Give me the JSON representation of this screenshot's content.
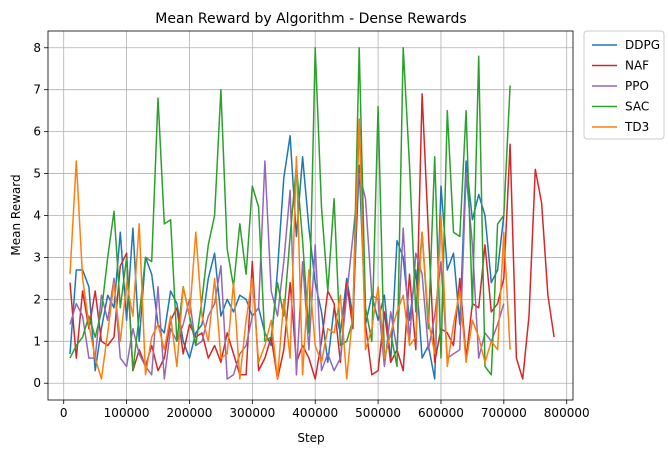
{
  "chart_data": {
    "type": "line",
    "title": "Mean Reward by Algorithm - Dense Rewards",
    "xlabel": "Step",
    "ylabel": "Mean Reward",
    "xlim": [
      -25000,
      810000
    ],
    "ylim": [
      -0.4,
      8.4
    ],
    "xticks": [
      0,
      100000,
      200000,
      300000,
      400000,
      500000,
      600000,
      700000,
      800000
    ],
    "yticks": [
      0,
      1,
      2,
      3,
      4,
      5,
      6,
      7,
      8
    ],
    "grid": true,
    "legend_position": "outside-right-top",
    "series": [
      {
        "name": "DDPG",
        "color": "#1f77b4",
        "x": [
          10000,
          20000,
          30000,
          40000,
          50000,
          60000,
          70000,
          80000,
          90000,
          100000,
          110000,
          120000,
          130000,
          140000,
          150000,
          160000,
          170000,
          180000,
          190000,
          200000,
          210000,
          220000,
          230000,
          240000,
          250000,
          260000,
          270000,
          280000,
          290000,
          300000,
          310000,
          320000,
          330000,
          340000,
          350000,
          360000,
          370000,
          380000,
          390000,
          400000,
          410000,
          420000,
          430000,
          440000,
          450000,
          460000,
          470000,
          480000,
          490000,
          500000,
          510000,
          520000,
          530000,
          540000,
          550000,
          560000,
          570000,
          580000,
          590000,
          600000,
          610000,
          620000,
          630000,
          640000,
          650000,
          660000,
          670000,
          680000,
          690000,
          700000
        ],
        "y": [
          0.7,
          2.7,
          2.7,
          2.3,
          0.3,
          1.3,
          2.1,
          1.8,
          3.6,
          1.5,
          3.7,
          1.0,
          3.0,
          2.6,
          1.4,
          1.2,
          2.2,
          1.9,
          1.0,
          0.6,
          1.2,
          1.4,
          2.5,
          3.1,
          1.6,
          2.0,
          1.7,
          2.1,
          2.0,
          1.6,
          1.8,
          1.2,
          0.9,
          2.7,
          4.9,
          5.9,
          3.5,
          5.4,
          3.7,
          2.4,
          1.7,
          0.5,
          1.8,
          1.2,
          2.5,
          1.6,
          5.2,
          1.4,
          2.1,
          1.5,
          2.1,
          0.5,
          3.4,
          3.0,
          1.5,
          2.7,
          0.6,
          0.9,
          0.1,
          4.7,
          2.7,
          3.1,
          1.4,
          5.3,
          3.9,
          4.5,
          4.0,
          2.4,
          2.7,
          4.0
        ]
      },
      {
        "name": "NAF",
        "color": "#d62728",
        "x": [
          10000,
          20000,
          30000,
          40000,
          50000,
          60000,
          70000,
          80000,
          90000,
          100000,
          110000,
          120000,
          130000,
          140000,
          150000,
          160000,
          170000,
          180000,
          190000,
          200000,
          210000,
          220000,
          230000,
          240000,
          250000,
          260000,
          270000,
          280000,
          290000,
          300000,
          310000,
          320000,
          330000,
          340000,
          350000,
          360000,
          370000,
          380000,
          390000,
          400000,
          410000,
          420000,
          430000,
          440000,
          450000,
          460000,
          470000,
          480000,
          490000,
          500000,
          510000,
          520000,
          530000,
          540000,
          550000,
          560000,
          570000,
          580000,
          590000,
          600000,
          610000,
          620000,
          630000,
          640000,
          650000,
          660000,
          670000,
          680000,
          690000,
          700000,
          710000,
          720000,
          730000,
          740000,
          750000,
          760000,
          770000,
          780000
        ],
        "y": [
          2.4,
          0.6,
          2.2,
          1.3,
          2.2,
          1.0,
          0.9,
          1.1,
          2.8,
          3.1,
          0.3,
          0.8,
          0.4,
          0.9,
          0.3,
          0.6,
          1.5,
          1.8,
          0.7,
          1.4,
          1.1,
          1.2,
          0.6,
          0.9,
          0.5,
          1.2,
          0.7,
          0.2,
          0.2,
          2.9,
          0.3,
          0.6,
          1.1,
          0.1,
          0.8,
          2.4,
          0.5,
          0.9,
          0.6,
          0.1,
          1.0,
          2.2,
          1.9,
          0.5,
          2.4,
          1.3,
          6.3,
          1.4,
          0.2,
          0.3,
          1.7,
          0.5,
          0.8,
          0.3,
          2.6,
          0.8,
          6.9,
          3.6,
          0.5,
          1.3,
          1.2,
          0.9,
          2.5,
          0.6,
          1.9,
          1.8,
          3.3,
          1.7,
          1.9,
          2.5,
          5.7,
          0.6,
          0.1,
          1.6,
          5.1,
          4.3,
          2.1,
          1.1
        ]
      },
      {
        "name": "PPO",
        "color": "#9467bd",
        "x": [
          10000,
          20000,
          30000,
          40000,
          50000,
          60000,
          70000,
          80000,
          90000,
          100000,
          110000,
          120000,
          130000,
          140000,
          150000,
          160000,
          170000,
          180000,
          190000,
          200000,
          210000,
          220000,
          230000,
          240000,
          250000,
          260000,
          270000,
          280000,
          290000,
          300000,
          310000,
          320000,
          330000,
          340000,
          350000,
          360000,
          370000,
          380000,
          390000,
          400000,
          410000,
          420000,
          430000,
          440000,
          450000,
          460000,
          470000,
          480000,
          490000,
          500000,
          510000,
          520000,
          530000,
          540000,
          550000,
          560000,
          570000,
          580000,
          590000,
          600000,
          610000,
          620000,
          630000,
          640000,
          650000,
          660000,
          670000,
          680000,
          690000,
          700000
        ],
        "y": [
          1.4,
          1.9,
          1.6,
          0.6,
          0.6,
          2.1,
          1.5,
          2.5,
          0.6,
          0.4,
          1.3,
          0.7,
          0.4,
          0.2,
          2.3,
          0.1,
          1.3,
          1.0,
          1.4,
          2.0,
          0.9,
          1.0,
          1.6,
          1.9,
          2.8,
          0.1,
          0.2,
          0.7,
          0.9,
          1.6,
          1.8,
          5.3,
          2.2,
          1.6,
          2.9,
          4.6,
          0.2,
          2.9,
          0.8,
          3.3,
          0.3,
          0.7,
          0.3,
          0.6,
          2.1,
          3.5,
          5.0,
          4.4,
          2.1,
          2.0,
          0.4,
          1.7,
          0.8,
          3.7,
          1.0,
          3.1,
          2.6,
          0.8,
          1.6,
          2.9,
          0.6,
          0.7,
          0.8,
          5.0,
          3.3,
          0.6,
          1.2,
          1.0,
          1.4,
          1.9
        ]
      },
      {
        "name": "SAC",
        "color": "#2ca02c",
        "x": [
          10000,
          20000,
          30000,
          40000,
          50000,
          60000,
          70000,
          80000,
          90000,
          100000,
          110000,
          120000,
          130000,
          140000,
          150000,
          160000,
          170000,
          180000,
          190000,
          200000,
          210000,
          220000,
          230000,
          240000,
          250000,
          260000,
          270000,
          280000,
          290000,
          300000,
          310000,
          320000,
          330000,
          340000,
          350000,
          360000,
          370000,
          380000,
          390000,
          400000,
          410000,
          420000,
          430000,
          440000,
          450000,
          460000,
          470000,
          480000,
          490000,
          500000,
          510000,
          520000,
          530000,
          540000,
          550000,
          560000,
          570000,
          580000,
          590000,
          600000,
          610000,
          620000,
          630000,
          640000,
          650000,
          660000,
          670000,
          680000,
          690000,
          700000,
          710000
        ],
        "y": [
          0.6,
          0.9,
          1.1,
          1.6,
          1.1,
          1.7,
          3.0,
          4.1,
          1.8,
          3.0,
          0.3,
          1.6,
          3.0,
          2.9,
          6.8,
          3.8,
          3.9,
          1.0,
          2.3,
          1.6,
          0.9,
          2.0,
          3.3,
          4.0,
          7.0,
          3.2,
          2.3,
          3.8,
          2.6,
          4.7,
          4.2,
          1.0,
          1.1,
          2.4,
          1.6,
          3.5,
          5.2,
          3.4,
          1.2,
          8.0,
          4.2,
          2.2,
          4.4,
          0.9,
          1.0,
          1.5,
          8.0,
          1.8,
          1.0,
          6.6,
          0.6,
          1.2,
          0.4,
          8.0,
          5.2,
          1.7,
          3.6,
          1.3,
          5.4,
          0.6,
          6.5,
          3.6,
          3.5,
          6.5,
          1.8,
          7.8,
          0.4,
          0.2,
          3.8,
          4.0,
          7.1
        ]
      },
      {
        "name": "TD3",
        "color": "#ff7f0e",
        "x": [
          10000,
          20000,
          30000,
          40000,
          50000,
          60000,
          70000,
          80000,
          90000,
          100000,
          110000,
          120000,
          130000,
          140000,
          150000,
          160000,
          170000,
          180000,
          190000,
          200000,
          210000,
          220000,
          230000,
          240000,
          250000,
          260000,
          270000,
          280000,
          290000,
          300000,
          310000,
          320000,
          330000,
          340000,
          350000,
          360000,
          370000,
          380000,
          390000,
          400000,
          410000,
          420000,
          430000,
          440000,
          450000,
          460000,
          470000,
          480000,
          490000,
          500000,
          510000,
          520000,
          530000,
          540000,
          550000,
          560000,
          570000,
          580000,
          590000,
          600000,
          610000,
          620000,
          630000,
          640000,
          650000,
          660000,
          670000,
          680000,
          690000,
          700000,
          710000
        ],
        "y": [
          2.6,
          5.3,
          2.5,
          1.4,
          0.6,
          0.1,
          1.2,
          2.4,
          1.0,
          2.4,
          1.6,
          3.8,
          0.2,
          1.1,
          1.4,
          0.8,
          1.6,
          0.4,
          2.3,
          1.6,
          3.6,
          1.6,
          1.0,
          2.5,
          0.6,
          0.7,
          2.4,
          0.1,
          1.5,
          2.5,
          0.5,
          0.9,
          1.5,
          0.1,
          2.0,
          0.6,
          5.4,
          0.2,
          2.7,
          0.9,
          0.5,
          1.3,
          1.2,
          2.1,
          0.1,
          1.7,
          6.3,
          0.8,
          1.3,
          2.3,
          0.6,
          1.2,
          1.7,
          2.1,
          0.9,
          1.1,
          3.6,
          1.5,
          0.7,
          4.0,
          0.4,
          1.4,
          2.2,
          0.5,
          1.5,
          1.1,
          0.5,
          1.0,
          0.8,
          3.6,
          0.8
        ]
      }
    ]
  }
}
